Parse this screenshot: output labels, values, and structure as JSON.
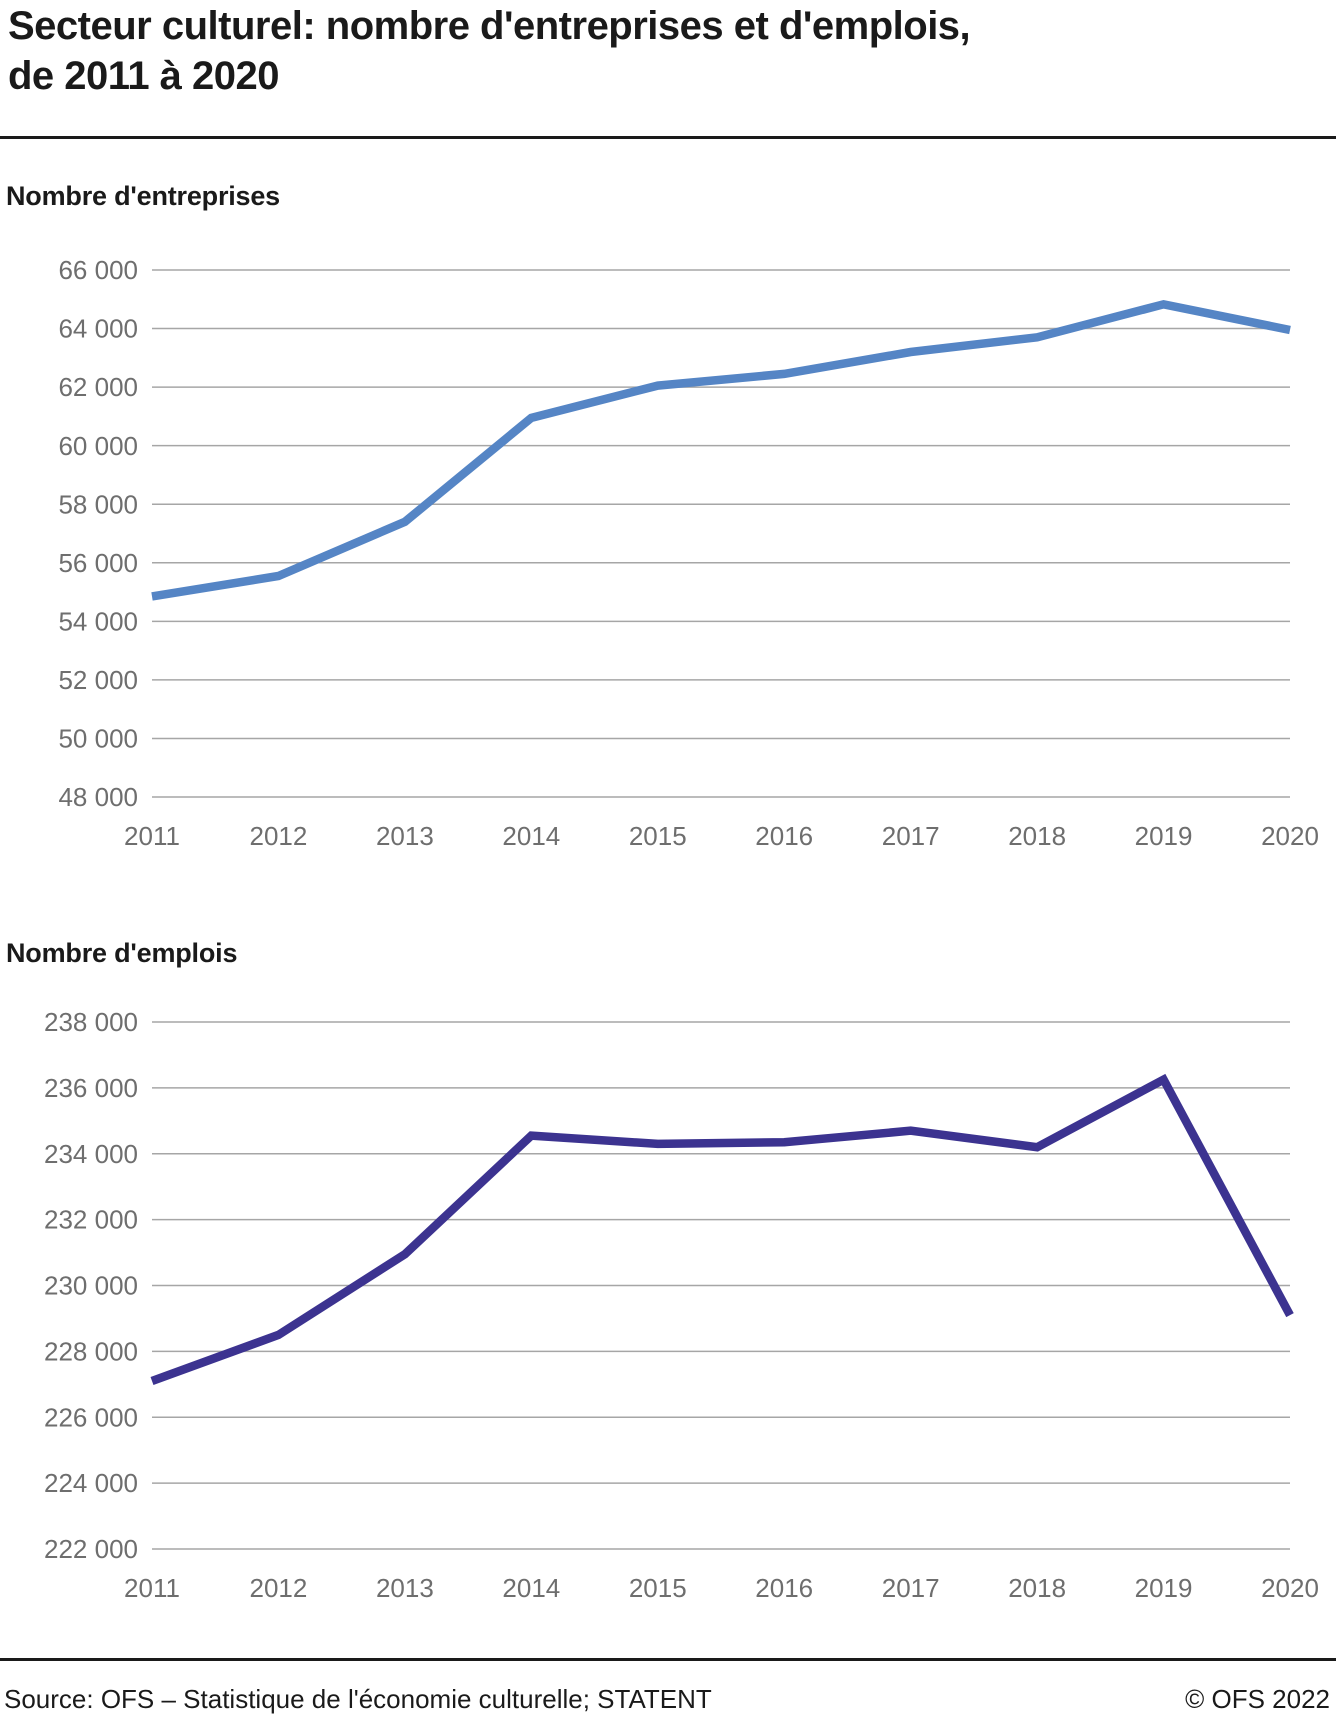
{
  "header": {
    "title_line1": "Secteur culturel: nombre d'entreprises et d'emplois,",
    "title_line2": "de 2011 à 2020"
  },
  "chart_data": [
    {
      "type": "line",
      "title": "Nombre d'entreprises",
      "categories": [
        2011,
        2012,
        2013,
        2014,
        2015,
        2016,
        2017,
        2018,
        2019,
        2020
      ],
      "values": [
        54850,
        55550,
        57400,
        60950,
        62050,
        62450,
        63200,
        63700,
        64830,
        63950
      ],
      "ylim": [
        48000,
        66000
      ],
      "ytick_step": 2000,
      "line_color": "#5585c5",
      "grid": true,
      "legend": "none",
      "xlabel": "",
      "ylabel": ""
    },
    {
      "type": "line",
      "title": "Nombre d'emplois",
      "categories": [
        2011,
        2012,
        2013,
        2014,
        2015,
        2016,
        2017,
        2018,
        2019,
        2020
      ],
      "values": [
        227100,
        228500,
        230950,
        234550,
        234300,
        234350,
        234700,
        234200,
        236250,
        229100
      ],
      "ylim": [
        222000,
        238000
      ],
      "ytick_step": 2000,
      "line_color": "#3c3390",
      "grid": true,
      "legend": "none",
      "xlabel": "",
      "ylabel": ""
    }
  ],
  "style": {
    "gridline_color": "#a6a6a6",
    "tick_label_color": "#6e6e6e",
    "text_color": "#1a1a1a"
  },
  "footer": {
    "source": "Source: OFS – Statistique de l'économie culturelle; STATENT",
    "copyright": "© OFS 2022"
  }
}
